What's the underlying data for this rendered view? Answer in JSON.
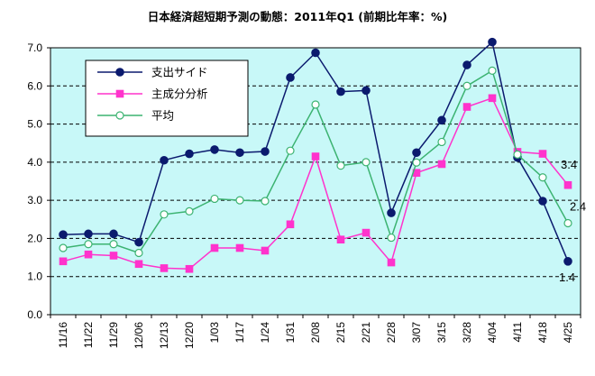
{
  "chart_data": {
    "type": "line",
    "title": "日本経済超短期予測の動態：2011年Q1 (前期比年率：%)",
    "categories": [
      "11/16",
      "11/22",
      "11/29",
      "12/06",
      "12/13",
      "12/20",
      "1/03",
      "1/17",
      "1/24",
      "1/31",
      "2/08",
      "2/15",
      "2/21",
      "2/28",
      "3/07",
      "3/15",
      "3/28",
      "4/04",
      "4/11",
      "4/18",
      "4/25"
    ],
    "ylim": [
      0,
      7
    ],
    "yticks": [
      "0.0",
      "1.0",
      "2.0",
      "3.0",
      "4.0",
      "5.0",
      "6.0",
      "7.0"
    ],
    "grid": "dashed horizontal",
    "background": "#c8f8f8",
    "series": [
      {
        "name": "支出サイド",
        "color": "#0b1a6e",
        "marker": "filled-circle",
        "values": [
          2.1,
          2.12,
          2.12,
          1.9,
          4.05,
          4.22,
          4.33,
          4.25,
          4.28,
          6.22,
          6.87,
          5.85,
          5.88,
          2.67,
          4.25,
          5.1,
          6.55,
          7.15,
          4.12,
          2.98,
          1.4
        ]
      },
      {
        "name": "主成分分析",
        "color": "#ff33cc",
        "marker": "filled-square",
        "values": [
          1.4,
          1.58,
          1.55,
          1.33,
          1.22,
          1.2,
          1.75,
          1.75,
          1.68,
          2.37,
          4.15,
          1.97,
          2.15,
          1.37,
          3.72,
          3.95,
          5.45,
          5.68,
          4.27,
          4.22,
          3.4
        ]
      },
      {
        "name": "平均",
        "color": "#3cb371",
        "marker": "open-circle",
        "values": [
          1.75,
          1.85,
          1.85,
          1.62,
          2.63,
          2.71,
          3.04,
          3.0,
          2.98,
          4.3,
          5.51,
          3.91,
          4.0,
          2.02,
          3.99,
          4.53,
          6.0,
          6.4,
          4.2,
          3.6,
          2.4
        ]
      }
    ],
    "annotations": [
      {
        "text": "3.4",
        "series": 1,
        "index": 20
      },
      {
        "text": "2.4",
        "series": 2,
        "index": 20
      },
      {
        "text": "1.4",
        "series": 0,
        "index": 20
      }
    ]
  }
}
